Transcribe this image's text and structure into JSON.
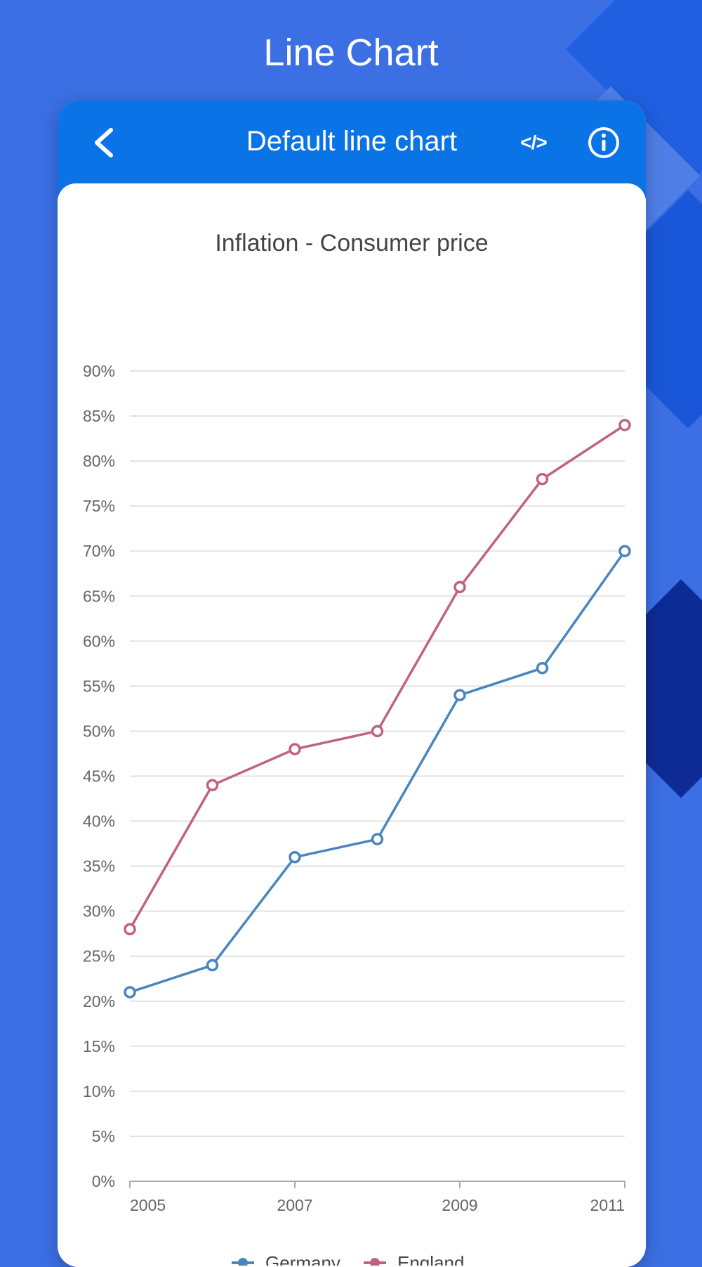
{
  "app": {
    "title": "Line Chart"
  },
  "header": {
    "title": "Default line chart",
    "back_icon": "chevron-left-icon",
    "code_icon": "code-icon",
    "code_label": "</>",
    "info_icon": "info-icon"
  },
  "colors": {
    "background": "#3b6fe3",
    "header": "#0a73e6",
    "germany": "#4a86be",
    "england": "#c0637f",
    "grid": "#e2e2e2",
    "axis_text": "#666666"
  },
  "chart_data": {
    "type": "line",
    "title": "Inflation - Consumer price",
    "x": [
      2005,
      2006,
      2007,
      2008,
      2009,
      2010,
      2011
    ],
    "x_tick_labels": [
      "2005",
      "2007",
      "2009",
      "2011"
    ],
    "ylim": [
      0,
      90
    ],
    "y_ticks": [
      0,
      5,
      10,
      15,
      20,
      25,
      30,
      35,
      40,
      45,
      50,
      55,
      60,
      65,
      70,
      75,
      80,
      85,
      90
    ],
    "y_tick_format": "%",
    "grid": true,
    "legend_position": "bottom",
    "series": [
      {
        "name": "Germany",
        "values": [
          21,
          24,
          36,
          38,
          54,
          57,
          70
        ]
      },
      {
        "name": "England",
        "values": [
          28,
          44,
          48,
          50,
          66,
          78,
          84
        ]
      }
    ]
  }
}
